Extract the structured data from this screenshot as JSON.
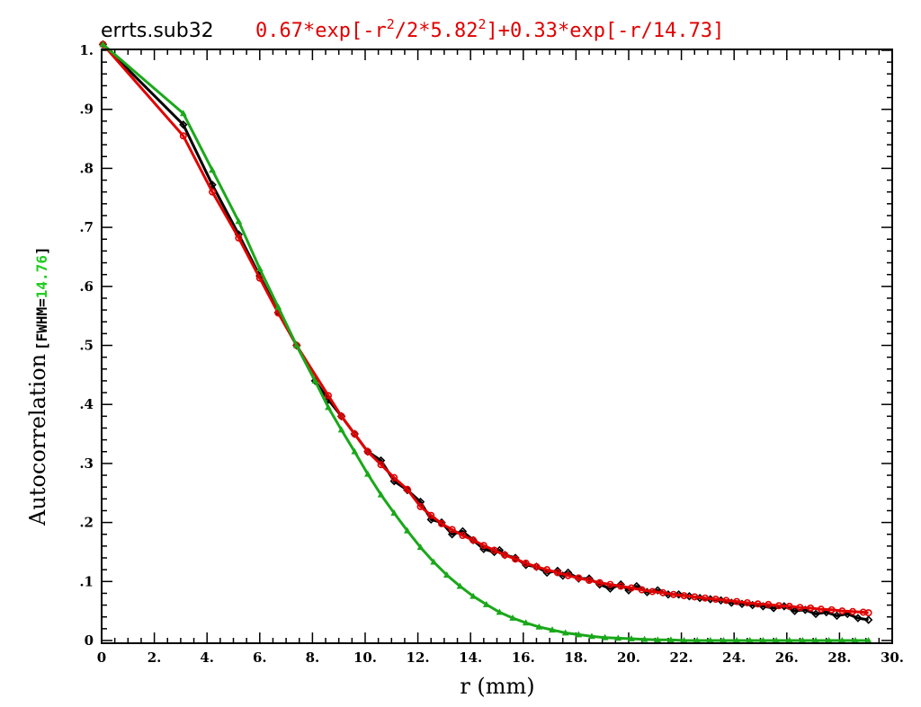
{
  "title": {
    "dataset": "errts.sub32",
    "formula_prefix": "0.67*exp[-r",
    "formula_sup1": "2",
    "formula_mid": "/2*5.82",
    "formula_sup2": "2",
    "formula_suffix": "]+0.33*exp[-r/14.73]"
  },
  "ylabel": {
    "main": "Autocorrelation",
    "fwhm_open": "[FWHM=",
    "fwhm_value": "14.76",
    "fwhm_close": "]"
  },
  "colors": {
    "data": "#000000",
    "fit": "#e00000",
    "gaussian": "#1aa81a",
    "fwhm_value": "#22cc22"
  },
  "chart_data": {
    "type": "line",
    "xlabel": "r (mm)",
    "ylabel": "Autocorrelation",
    "xlim": [
      0,
      30
    ],
    "ylim": [
      0,
      1.0
    ],
    "x_ticks": [
      0,
      2,
      4,
      6,
      8,
      10,
      12,
      14,
      16,
      18,
      20,
      22,
      24,
      26,
      28,
      30
    ],
    "x_tick_labels": [
      "0",
      "2.",
      "4.",
      "6.",
      "8.",
      "10.",
      "12.",
      "14.",
      "16.",
      "18.",
      "20.",
      "22.",
      "24.",
      "26.",
      "28.",
      "30."
    ],
    "y_ticks": [
      0,
      0.1,
      0.2,
      0.3,
      0.4,
      0.5,
      0.6,
      0.7,
      0.8,
      0.9,
      1.0
    ],
    "y_tick_labels": [
      "0",
      ".1",
      ".2",
      ".3",
      ".4",
      ".5",
      ".6",
      ".7",
      ".8",
      ".9",
      "1."
    ],
    "grid": false,
    "series": [
      {
        "key": "data",
        "color": "#000000",
        "marker": "diamond",
        "x": [
          0.05,
          3.1,
          4.2,
          5.2,
          6.0,
          6.7,
          7.4,
          8.1,
          8.6,
          9.1,
          9.6,
          10.1,
          10.6,
          11.1,
          11.6,
          12.1,
          12.5,
          12.9,
          13.3,
          13.7,
          14.1,
          14.5,
          14.9,
          15.1,
          15.3,
          15.7,
          16.1,
          16.5,
          16.9,
          17.3,
          17.5,
          17.7,
          18.1,
          18.5,
          18.9,
          19.3,
          19.7,
          20.0,
          20.3,
          20.7,
          21.1,
          21.5,
          21.9,
          22.3,
          22.7,
          23.1,
          23.5,
          23.9,
          24.3,
          24.7,
          25.1,
          25.5,
          25.9,
          26.3,
          26.7,
          27.1,
          27.5,
          27.9,
          28.3,
          28.7,
          29.1
        ],
        "y": [
          1.01,
          0.874,
          0.772,
          0.688,
          0.618,
          0.556,
          0.5,
          0.44,
          0.408,
          0.38,
          0.35,
          0.32,
          0.305,
          0.27,
          0.255,
          0.235,
          0.205,
          0.2,
          0.18,
          0.185,
          0.17,
          0.155,
          0.15,
          0.153,
          0.145,
          0.14,
          0.128,
          0.125,
          0.115,
          0.118,
          0.11,
          0.115,
          0.105,
          0.105,
          0.095,
          0.088,
          0.095,
          0.085,
          0.092,
          0.082,
          0.085,
          0.078,
          0.078,
          0.075,
          0.072,
          0.07,
          0.068,
          0.064,
          0.062,
          0.06,
          0.058,
          0.055,
          0.058,
          0.05,
          0.052,
          0.045,
          0.048,
          0.042,
          0.045,
          0.038,
          0.035
        ]
      },
      {
        "key": "fit",
        "color": "#e00000",
        "marker": "circle",
        "x": [
          0.05,
          3.1,
          4.2,
          5.2,
          6.0,
          6.7,
          7.4,
          8.6,
          9.1,
          9.6,
          10.1,
          10.6,
          11.1,
          11.6,
          12.1,
          12.5,
          12.9,
          13.3,
          13.7,
          14.1,
          14.5,
          14.9,
          15.3,
          15.7,
          16.1,
          16.5,
          16.9,
          17.3,
          17.7,
          18.1,
          18.5,
          18.9,
          19.3,
          19.7,
          20.1,
          20.5,
          20.9,
          21.3,
          21.7,
          22.1,
          22.5,
          22.9,
          23.3,
          23.7,
          24.1,
          24.5,
          24.9,
          25.3,
          25.7,
          26.1,
          26.5,
          26.9,
          27.3,
          27.7,
          28.1,
          28.5,
          28.9,
          29.1
        ],
        "y": [
          1.01,
          0.855,
          0.76,
          0.682,
          0.614,
          0.555,
          0.5,
          0.415,
          0.38,
          0.35,
          0.32,
          0.298,
          0.276,
          0.256,
          0.227,
          0.212,
          0.198,
          0.188,
          0.178,
          0.17,
          0.161,
          0.153,
          0.145,
          0.138,
          0.131,
          0.125,
          0.12,
          0.115,
          0.11,
          0.106,
          0.102,
          0.098,
          0.095,
          0.092,
          0.089,
          0.086,
          0.083,
          0.081,
          0.078,
          0.076,
          0.074,
          0.072,
          0.07,
          0.068,
          0.066,
          0.064,
          0.062,
          0.061,
          0.059,
          0.058,
          0.056,
          0.055,
          0.053,
          0.052,
          0.05,
          0.049,
          0.048,
          0.047
        ]
      },
      {
        "key": "gaussian",
        "color": "#1aa81a",
        "marker": "triangle",
        "x": [
          0.05,
          3.1,
          4.2,
          5.2,
          6.0,
          6.7,
          7.4,
          8.1,
          8.6,
          9.1,
          9.6,
          10.1,
          10.6,
          11.1,
          11.6,
          12.1,
          12.6,
          13.1,
          13.6,
          14.1,
          14.6,
          15.1,
          15.6,
          16.1,
          16.6,
          17.1,
          17.6,
          18.1,
          18.6,
          19.1,
          19.6,
          20.1,
          20.6,
          21.1,
          21.6,
          22.1,
          22.6,
          23.1,
          23.6,
          24.1,
          24.6,
          25.1,
          25.6,
          26.1,
          26.6,
          27.1,
          27.6,
          28.1,
          28.6,
          29.1
        ],
        "y": [
          1.01,
          0.893,
          0.797,
          0.71,
          0.63,
          0.565,
          0.5,
          0.44,
          0.395,
          0.357,
          0.32,
          0.282,
          0.247,
          0.216,
          0.186,
          0.158,
          0.133,
          0.111,
          0.092,
          0.075,
          0.061,
          0.048,
          0.038,
          0.03,
          0.023,
          0.018,
          0.013,
          0.01,
          0.007,
          0.005,
          0.004,
          0.003,
          0.002,
          0.001,
          0.001,
          0.0,
          0.0,
          0.0,
          0.0,
          0.0,
          0.0,
          0.0,
          0.0,
          0.0,
          0.0,
          0.0,
          0.0,
          0.0,
          0.0,
          0.0
        ]
      }
    ]
  }
}
